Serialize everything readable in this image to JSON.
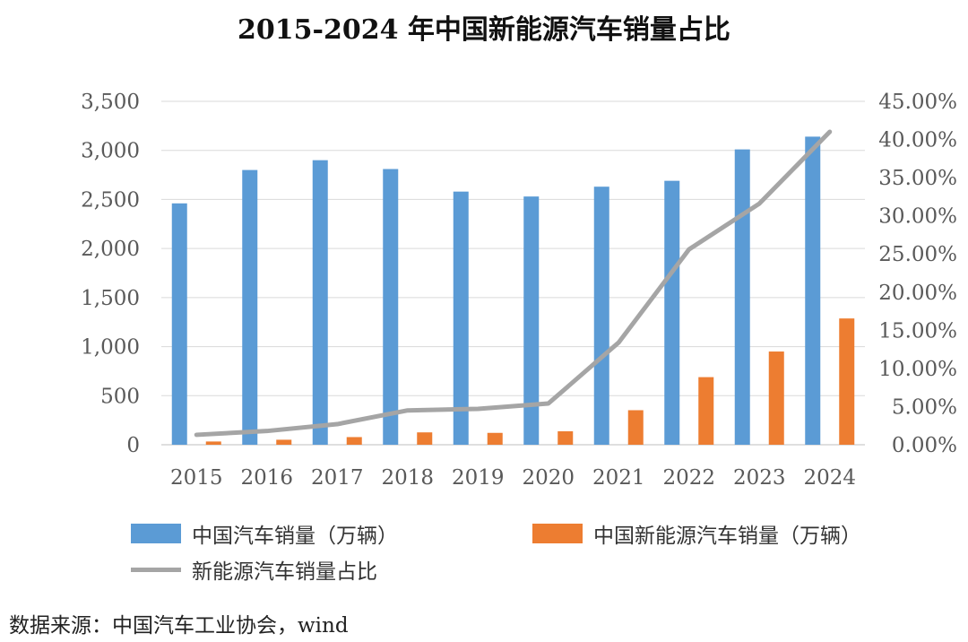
{
  "chart_data": {
    "type": "bar",
    "title": "2015-2024 年中国新能源汽车销量占比",
    "categories": [
      "2015",
      "2016",
      "2017",
      "2018",
      "2019",
      "2020",
      "2021",
      "2022",
      "2023",
      "2024"
    ],
    "series": [
      {
        "name": "中国汽车销量（万辆）",
        "kind": "bar",
        "axis": "left",
        "color": "#5b9bd5",
        "values": [
          2460,
          2800,
          2900,
          2810,
          2580,
          2530,
          2630,
          2690,
          3010,
          3140
        ]
      },
      {
        "name": "中国新能源汽车销量（万辆）",
        "kind": "bar",
        "axis": "left",
        "color": "#ed7d31",
        "values": [
          33,
          51,
          78,
          126,
          121,
          137,
          352,
          689,
          950,
          1287
        ]
      },
      {
        "name": "新能源汽车销量占比",
        "kind": "line",
        "axis": "right",
        "color": "#a5a5a5",
        "values": [
          1.3,
          1.8,
          2.7,
          4.5,
          4.7,
          5.4,
          13.4,
          25.6,
          31.6,
          41.0
        ]
      }
    ],
    "y_left": {
      "min": 0,
      "max": 3500,
      "ticks": [
        0,
        500,
        1000,
        1500,
        2000,
        2500,
        3000,
        3500
      ],
      "tick_labels": [
        "0",
        "500",
        "1,000",
        "1,500",
        "2,000",
        "2,500",
        "3,000",
        "3,500"
      ]
    },
    "y_right": {
      "min": 0,
      "max": 45,
      "ticks": [
        0,
        5,
        10,
        15,
        20,
        25,
        30,
        35,
        40,
        45
      ],
      "tick_labels": [
        "0.00%",
        "5.00%",
        "10.00%",
        "15.00%",
        "20.00%",
        "25.00%",
        "30.00%",
        "35.00%",
        "40.00%",
        "45.00%"
      ]
    },
    "grid": true,
    "legend_position": "bottom"
  },
  "source": "数据来源：中国汽车工业协会，wind"
}
